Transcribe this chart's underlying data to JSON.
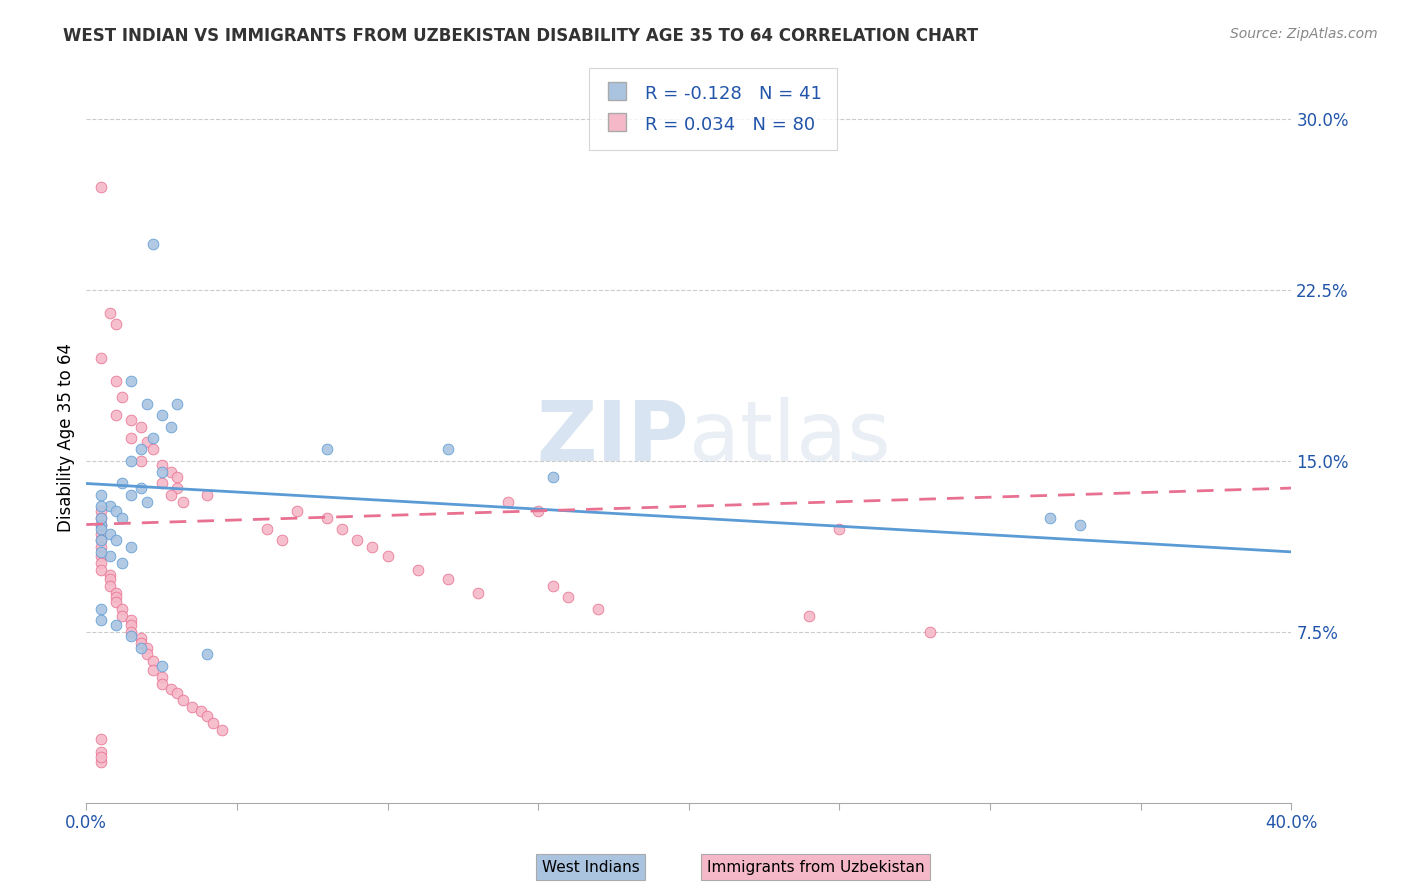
{
  "title": "WEST INDIAN VS IMMIGRANTS FROM UZBEKISTAN DISABILITY AGE 35 TO 64 CORRELATION CHART",
  "source": "Source: ZipAtlas.com",
  "ylabel": "Disability Age 35 to 64",
  "xlim": [
    0.0,
    0.4
  ],
  "ylim": [
    0.0,
    0.32
  ],
  "xticks": [
    0.0,
    0.05,
    0.1,
    0.15,
    0.2,
    0.25,
    0.3,
    0.35,
    0.4
  ],
  "xtick_labels": [
    "0.0%",
    "",
    "",
    "",
    "",
    "",
    "",
    "",
    "40.0%"
  ],
  "yticks_right": [
    0.075,
    0.15,
    0.225,
    0.3
  ],
  "ytick_right_labels": [
    "7.5%",
    "15.0%",
    "22.5%",
    "30.0%"
  ],
  "grid_color": "#cccccc",
  "watermark_zip": "ZIP",
  "watermark_atlas": "atlas",
  "R_blue": -0.128,
  "N_blue": 41,
  "R_pink": 0.034,
  "N_pink": 80,
  "blue_color": "#aac4e0",
  "pink_color": "#f5b8c8",
  "blue_edge_color": "#5b9bd5",
  "pink_edge_color": "#e87090",
  "blue_line_color": "#5b9bd5",
  "pink_line_color": "#e87090",
  "legend_R_color": "#2255aa",
  "axis_color": "#2255aa",
  "blue_trend": [
    -0.128,
    0.135
  ],
  "pink_trend": [
    0.034,
    0.118
  ],
  "blue_scatter": [
    [
      0.022,
      0.245
    ],
    [
      0.015,
      0.185
    ],
    [
      0.02,
      0.175
    ],
    [
      0.025,
      0.17
    ],
    [
      0.028,
      0.165
    ],
    [
      0.03,
      0.175
    ],
    [
      0.022,
      0.16
    ],
    [
      0.018,
      0.155
    ],
    [
      0.015,
      0.15
    ],
    [
      0.025,
      0.145
    ],
    [
      0.012,
      0.14
    ],
    [
      0.018,
      0.138
    ],
    [
      0.015,
      0.135
    ],
    [
      0.02,
      0.132
    ],
    [
      0.008,
      0.13
    ],
    [
      0.01,
      0.128
    ],
    [
      0.012,
      0.125
    ],
    [
      0.005,
      0.122
    ],
    [
      0.008,
      0.118
    ],
    [
      0.01,
      0.115
    ],
    [
      0.015,
      0.112
    ],
    [
      0.008,
      0.108
    ],
    [
      0.012,
      0.105
    ],
    [
      0.005,
      0.135
    ],
    [
      0.005,
      0.13
    ],
    [
      0.005,
      0.125
    ],
    [
      0.005,
      0.12
    ],
    [
      0.005,
      0.115
    ],
    [
      0.005,
      0.11
    ],
    [
      0.08,
      0.155
    ],
    [
      0.12,
      0.155
    ],
    [
      0.155,
      0.143
    ],
    [
      0.32,
      0.125
    ],
    [
      0.33,
      0.122
    ],
    [
      0.005,
      0.085
    ],
    [
      0.005,
      0.08
    ],
    [
      0.01,
      0.078
    ],
    [
      0.015,
      0.073
    ],
    [
      0.018,
      0.068
    ],
    [
      0.04,
      0.065
    ],
    [
      0.025,
      0.06
    ]
  ],
  "pink_scatter": [
    [
      0.005,
      0.27
    ],
    [
      0.008,
      0.215
    ],
    [
      0.01,
      0.21
    ],
    [
      0.005,
      0.195
    ],
    [
      0.01,
      0.185
    ],
    [
      0.012,
      0.178
    ],
    [
      0.01,
      0.17
    ],
    [
      0.015,
      0.168
    ],
    [
      0.018,
      0.165
    ],
    [
      0.015,
      0.16
    ],
    [
      0.02,
      0.158
    ],
    [
      0.022,
      0.155
    ],
    [
      0.018,
      0.15
    ],
    [
      0.025,
      0.148
    ],
    [
      0.028,
      0.145
    ],
    [
      0.03,
      0.143
    ],
    [
      0.025,
      0.14
    ],
    [
      0.03,
      0.138
    ],
    [
      0.028,
      0.135
    ],
    [
      0.032,
      0.132
    ],
    [
      0.005,
      0.128
    ],
    [
      0.005,
      0.125
    ],
    [
      0.005,
      0.122
    ],
    [
      0.005,
      0.118
    ],
    [
      0.005,
      0.115
    ],
    [
      0.005,
      0.112
    ],
    [
      0.005,
      0.108
    ],
    [
      0.005,
      0.105
    ],
    [
      0.005,
      0.102
    ],
    [
      0.008,
      0.1
    ],
    [
      0.008,
      0.098
    ],
    [
      0.008,
      0.095
    ],
    [
      0.01,
      0.092
    ],
    [
      0.01,
      0.09
    ],
    [
      0.01,
      0.088
    ],
    [
      0.012,
      0.085
    ],
    [
      0.012,
      0.082
    ],
    [
      0.015,
      0.08
    ],
    [
      0.015,
      0.078
    ],
    [
      0.015,
      0.075
    ],
    [
      0.018,
      0.072
    ],
    [
      0.018,
      0.07
    ],
    [
      0.02,
      0.068
    ],
    [
      0.02,
      0.065
    ],
    [
      0.022,
      0.062
    ],
    [
      0.022,
      0.058
    ],
    [
      0.025,
      0.055
    ],
    [
      0.025,
      0.052
    ],
    [
      0.028,
      0.05
    ],
    [
      0.03,
      0.048
    ],
    [
      0.032,
      0.045
    ],
    [
      0.035,
      0.042
    ],
    [
      0.038,
      0.04
    ],
    [
      0.04,
      0.038
    ],
    [
      0.042,
      0.035
    ],
    [
      0.045,
      0.032
    ],
    [
      0.005,
      0.028
    ],
    [
      0.005,
      0.022
    ],
    [
      0.005,
      0.018
    ],
    [
      0.06,
      0.12
    ],
    [
      0.065,
      0.115
    ],
    [
      0.07,
      0.128
    ],
    [
      0.08,
      0.125
    ],
    [
      0.085,
      0.12
    ],
    [
      0.09,
      0.115
    ],
    [
      0.095,
      0.112
    ],
    [
      0.1,
      0.108
    ],
    [
      0.11,
      0.102
    ],
    [
      0.12,
      0.098
    ],
    [
      0.13,
      0.092
    ],
    [
      0.14,
      0.132
    ],
    [
      0.15,
      0.128
    ],
    [
      0.155,
      0.095
    ],
    [
      0.16,
      0.09
    ],
    [
      0.17,
      0.085
    ],
    [
      0.24,
      0.082
    ],
    [
      0.25,
      0.12
    ],
    [
      0.28,
      0.075
    ],
    [
      0.005,
      0.02
    ],
    [
      0.04,
      0.135
    ]
  ]
}
